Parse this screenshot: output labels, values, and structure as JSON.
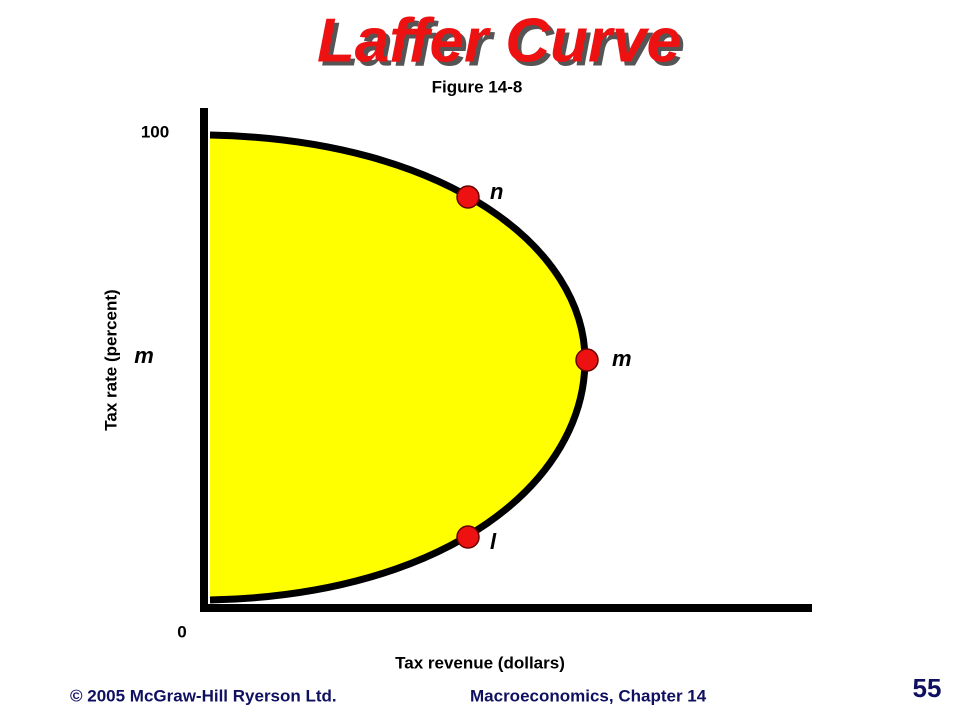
{
  "header": {
    "title": "Laffer Curve",
    "figure": "Figure 14-8"
  },
  "axes": {
    "y_label": "Tax rate (percent)",
    "y_top": "100",
    "origin": "0",
    "y_marker": "m",
    "x_label": "Tax revenue (dollars)"
  },
  "points": [
    {
      "label": "n"
    },
    {
      "label": "m"
    },
    {
      "label": "l"
    }
  ],
  "footer": {
    "copyright": "© 2005 McGraw-Hill Ryerson Ltd.",
    "course": "Macroeconomics, Chapter 14",
    "page": "55"
  }
}
